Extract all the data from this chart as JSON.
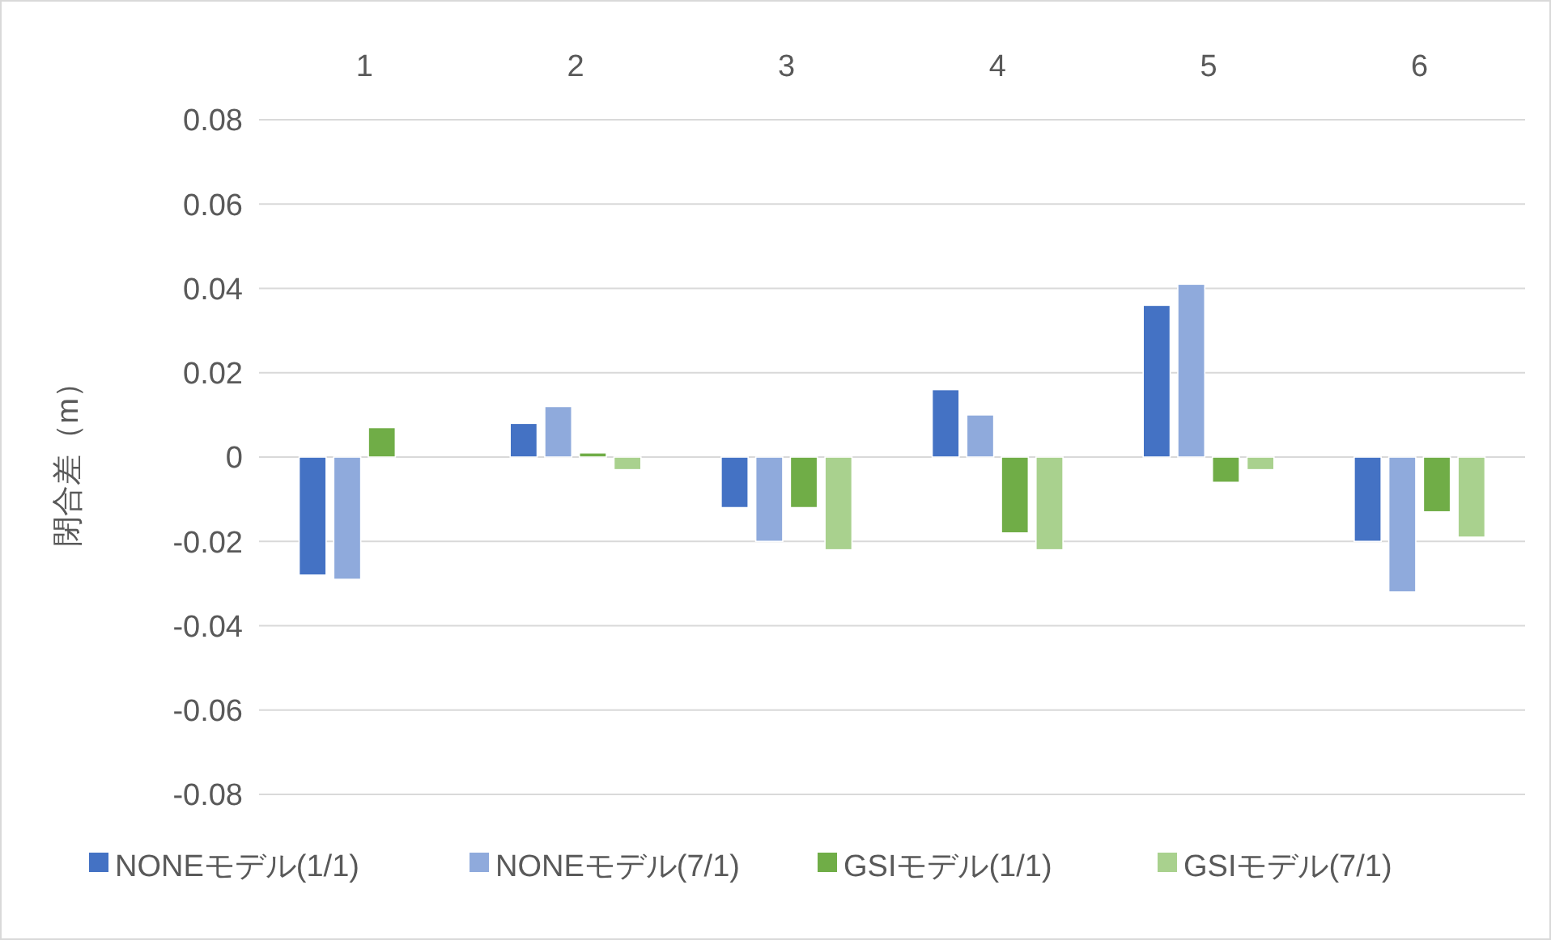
{
  "chart_data": {
    "type": "bar",
    "ylabel": "閉合差（m）",
    "categories": [
      "1",
      "2",
      "3",
      "4",
      "5",
      "6"
    ],
    "series": [
      {
        "name": "NONEモデル(1/1)",
        "color": "#4472c4",
        "values": [
          -0.028,
          0.008,
          -0.012,
          0.016,
          0.036,
          -0.02
        ]
      },
      {
        "name": "NONEモデル(7/1)",
        "color": "#8faadc",
        "values": [
          -0.029,
          0.012,
          -0.02,
          0.01,
          0.041,
          -0.032
        ]
      },
      {
        "name": "GSIモデル(1/1)",
        "color": "#70ad47",
        "values": [
          0.007,
          0.001,
          -0.012,
          -0.018,
          -0.006,
          -0.013
        ]
      },
      {
        "name": "GSIモデル(7/1)",
        "color": "#a9d18e",
        "values": [
          0,
          -0.003,
          -0.022,
          -0.022,
          -0.003,
          -0.019
        ]
      }
    ],
    "ylim": [
      -0.08,
      0.08
    ],
    "yticks": [
      {
        "value": -0.08,
        "label": "-0.08"
      },
      {
        "value": -0.06,
        "label": "-0.06"
      },
      {
        "value": -0.04,
        "label": "-0.04"
      },
      {
        "value": -0.02,
        "label": "-0.02"
      },
      0,
      {
        "value": 0.02,
        "label": "0.02"
      },
      {
        "value": 0.04,
        "label": "0.04"
      },
      {
        "value": 0.06,
        "label": "0.06"
      },
      {
        "value": 0.08,
        "label": "0.08"
      }
    ],
    "grid": true,
    "legend": "bottom"
  }
}
